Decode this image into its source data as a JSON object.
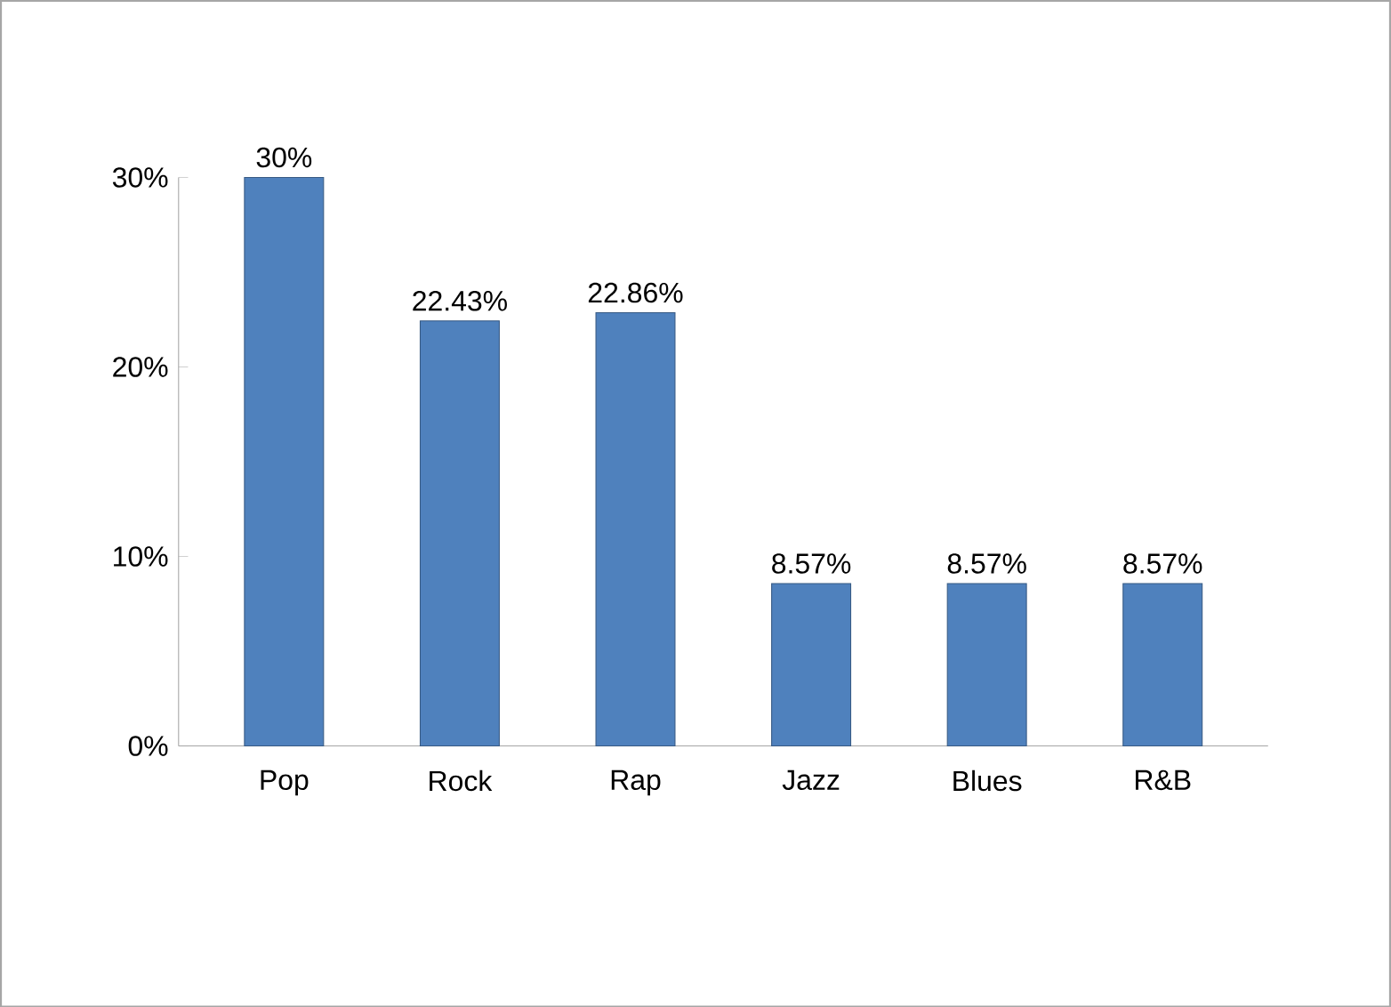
{
  "chart_data": {
    "type": "bar",
    "categories": [
      "Pop",
      "Rock",
      "Rap",
      "Jazz",
      "Blues",
      "R&B"
    ],
    "values": [
      30,
      22.43,
      22.86,
      8.57,
      8.57,
      8.57
    ],
    "value_labels": [
      "30%",
      "22.43%",
      "22.86%",
      "8.57%",
      "8.57%",
      "8.57%"
    ],
    "color": "#4f81bd",
    "ylim": [
      0,
      30
    ],
    "yticks": [
      {
        "value": 0,
        "label": "0%"
      },
      {
        "value": 10,
        "label": "10%"
      },
      {
        "value": 20,
        "label": "20%"
      },
      {
        "value": 30,
        "label": "30%"
      }
    ]
  }
}
